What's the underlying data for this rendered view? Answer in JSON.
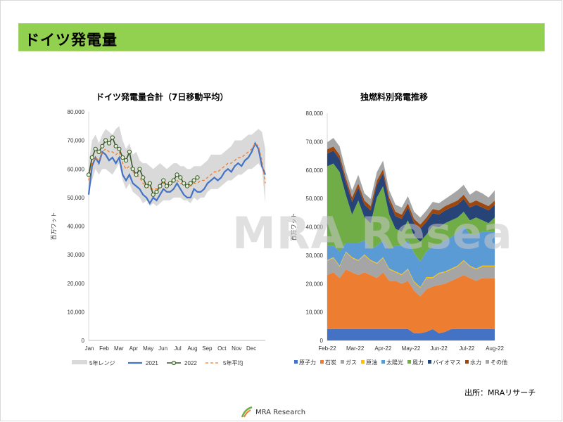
{
  "header": {
    "title": "ドイツ発電量"
  },
  "watermark": "MRA Resea",
  "source_note": "出所：MRAリサーチ",
  "footer": {
    "logo_text": "MRA Research"
  },
  "colors": {
    "header_bg": "#92d050",
    "range": "#d9d9d9",
    "y2021": "#4472c4",
    "y2022_line": "#375623",
    "y2022_marker": "#e2efda",
    "avg5": "#ed7d31",
    "nuclear": "#4472c4",
    "coal": "#ed7d31",
    "gas": "#a5a5a5",
    "oil": "#ffc000",
    "solar": "#5b9bd5",
    "wind": "#70ad47",
    "biomass": "#264478",
    "hydro": "#9e480e",
    "other": "#a5a5a5"
  },
  "chart_data": [
    {
      "type": "line",
      "title": "ドイツ発電量合計（7日移動平均）",
      "ylabel": "百万ワット",
      "ylim": [
        0,
        80000
      ],
      "y_ticks": [
        "0",
        "10,000",
        "20,000",
        "30,000",
        "40,000",
        "50,000",
        "60,000",
        "70,000",
        "80,000"
      ],
      "x_labels": [
        "Jan",
        "Feb",
        "Mar",
        "Apr",
        "May",
        "Jun",
        "Jul",
        "Aug",
        "Sep",
        "Oct",
        "Nov",
        "Dec"
      ],
      "x_points": 53,
      "legend": [
        "5年レンジ",
        "2021",
        "2022",
        "5年平均"
      ],
      "range_upper": [
        62000,
        70000,
        72000,
        69000,
        72000,
        74000,
        73000,
        72000,
        74000,
        75000,
        70000,
        67000,
        69000,
        65000,
        66000,
        63000,
        62000,
        62000,
        61000,
        60000,
        61000,
        62000,
        61000,
        60000,
        61000,
        62000,
        62000,
        61000,
        61000,
        60000,
        60000,
        61000,
        61000,
        61000,
        62000,
        63000,
        65000,
        65000,
        65000,
        65000,
        66000,
        67000,
        68000,
        70000,
        70000,
        70000,
        71000,
        72000,
        72000,
        73000,
        74000,
        73000,
        67000
      ],
      "range_lower": [
        52000,
        56000,
        60000,
        58000,
        60000,
        60000,
        59000,
        58000,
        60000,
        62000,
        56000,
        53000,
        55000,
        52000,
        51000,
        50000,
        48000,
        49000,
        47000,
        48000,
        47000,
        48000,
        49000,
        49000,
        49000,
        50000,
        50000,
        50000,
        49000,
        49000,
        48000,
        50000,
        49000,
        50000,
        50000,
        52000,
        53000,
        53000,
        53000,
        54000,
        55000,
        56000,
        56000,
        57000,
        58000,
        58000,
        59000,
        60000,
        60000,
        61000,
        62000,
        60000,
        48000
      ],
      "series": [
        {
          "name": "2021",
          "values": [
            51000,
            61000,
            64000,
            62000,
            66000,
            65000,
            63000,
            64000,
            62000,
            64000,
            58000,
            56000,
            58000,
            55000,
            54000,
            53000,
            51000,
            50000,
            48000,
            50000,
            49000,
            51000,
            53000,
            52000,
            52000,
            53000,
            55000,
            53000,
            51000,
            50000,
            50000,
            53000,
            52000,
            52000,
            53000,
            55000,
            56000,
            57000,
            56000,
            57000,
            59000,
            60000,
            59000,
            61000,
            62000,
            61000,
            63000,
            64000,
            66000,
            69000,
            67000,
            61000,
            58000
          ]
        },
        {
          "name": "2022",
          "values": [
            58000,
            64000,
            67000,
            66000,
            68000,
            70000,
            69000,
            71000,
            68000,
            67000,
            64000,
            63000,
            66000,
            60000,
            58000,
            60000,
            57000,
            54000,
            55000,
            51000,
            52000,
            54000,
            56000,
            54000,
            55000,
            56000,
            58000,
            57000,
            55000,
            54000,
            55000,
            56000,
            57000
          ]
        },
        {
          "name": "5年平均",
          "values": [
            56000,
            62000,
            64000,
            63000,
            66000,
            67000,
            66000,
            66000,
            65000,
            66000,
            62000,
            60000,
            61000,
            59000,
            58000,
            57000,
            55000,
            54000,
            53000,
            53000,
            53000,
            54000,
            55000,
            55000,
            55000,
            56000,
            56000,
            55000,
            55000,
            54000,
            54000,
            55000,
            55000,
            56000,
            56000,
            57000,
            58000,
            59000,
            59000,
            60000,
            61000,
            62000,
            62000,
            63000,
            64000,
            64000,
            65000,
            66000,
            67000,
            69000,
            68000,
            63000,
            55000
          ]
        }
      ]
    },
    {
      "type": "area",
      "title": "独燃料別発電推移",
      "ylabel": "百万ワット",
      "ylim": [
        0,
        80000
      ],
      "y_ticks": [
        "0",
        "10,000",
        "20,000",
        "30,000",
        "40,000",
        "50,000",
        "60,000",
        "70,000",
        "80,000"
      ],
      "x_labels": [
        "Feb-22",
        "Mar-22",
        "Apr-22",
        "May-22",
        "Jun-22",
        "Jul-22",
        "Aug-22"
      ],
      "x_points": 28,
      "legend": [
        "原子力",
        "石炭",
        "ガス",
        "原油",
        "太陽光",
        "風力",
        "バイオマス",
        "水力",
        "その他"
      ],
      "series": [
        {
          "name": "原子力",
          "values": [
            4000,
            4000,
            4000,
            4000,
            4000,
            4000,
            4000,
            4000,
            4000,
            4000,
            4000,
            4000,
            4000,
            4000,
            2500,
            2500,
            3000,
            4000,
            2500,
            3000,
            4000,
            4000,
            4000,
            4000,
            4000,
            4000,
            4000,
            4000
          ]
        },
        {
          "name": "石炭",
          "values": [
            19000,
            20000,
            18000,
            21000,
            20000,
            19000,
            20000,
            19000,
            18000,
            20000,
            17000,
            17000,
            16000,
            17000,
            15000,
            13000,
            15000,
            15000,
            17000,
            17000,
            17000,
            18000,
            19000,
            18000,
            17000,
            18000,
            18000,
            18000
          ]
        },
        {
          "name": "ガス",
          "values": [
            5000,
            5000,
            4000,
            6000,
            5000,
            5000,
            6000,
            5000,
            5000,
            5000,
            4000,
            3000,
            3000,
            4000,
            3000,
            3000,
            4000,
            3000,
            4000,
            4000,
            4000,
            4000,
            5000,
            4000,
            4000,
            4000,
            4000,
            4000
          ]
        },
        {
          "name": "原油",
          "values": [
            300,
            300,
            300,
            300,
            300,
            300,
            300,
            300,
            300,
            300,
            300,
            300,
            300,
            300,
            300,
            300,
            300,
            300,
            300,
            300,
            300,
            300,
            300,
            300,
            300,
            300,
            300,
            300
          ]
        },
        {
          "name": "太陽光",
          "values": [
            5000,
            4000,
            5000,
            3000,
            5000,
            6000,
            5000,
            4000,
            6000,
            6000,
            7000,
            9000,
            10000,
            10000,
            10000,
            9000,
            9000,
            11000,
            10000,
            11000,
            11000,
            12000,
            12000,
            11000,
            12000,
            12000,
            12000,
            12000
          ]
        },
        {
          "name": "風力",
          "values": [
            28000,
            29000,
            28000,
            17000,
            10000,
            15000,
            8000,
            9000,
            17000,
            19000,
            12000,
            6000,
            5000,
            7000,
            6000,
            7000,
            6000,
            7000,
            6000,
            6000,
            6000,
            5000,
            5000,
            5000,
            6000,
            4000,
            3000,
            5000
          ]
        },
        {
          "name": "バイオマス",
          "values": [
            4500,
            4500,
            4500,
            4500,
            4500,
            4500,
            4500,
            4500,
            4500,
            4500,
            4500,
            4500,
            4500,
            4500,
            4500,
            4500,
            4500,
            4500,
            4500,
            4500,
            4500,
            4500,
            4500,
            4500,
            4500,
            4500,
            4500,
            4500
          ]
        },
        {
          "name": "水力",
          "values": [
            1500,
            1500,
            1500,
            1500,
            1500,
            1500,
            1500,
            1500,
            1500,
            1500,
            1500,
            1500,
            1500,
            1500,
            1500,
            1500,
            1500,
            1500,
            1500,
            1500,
            1500,
            1500,
            1500,
            1500,
            1500,
            1500,
            1500,
            1500
          ]
        },
        {
          "name": "その他",
          "values": [
            2500,
            3000,
            3000,
            2500,
            2500,
            3000,
            2500,
            2500,
            3000,
            3000,
            2500,
            2500,
            2500,
            2500,
            2500,
            2500,
            2500,
            2500,
            2500,
            2500,
            3000,
            3500,
            3500,
            3000,
            3500,
            3500,
            3000,
            3500
          ]
        }
      ]
    }
  ]
}
